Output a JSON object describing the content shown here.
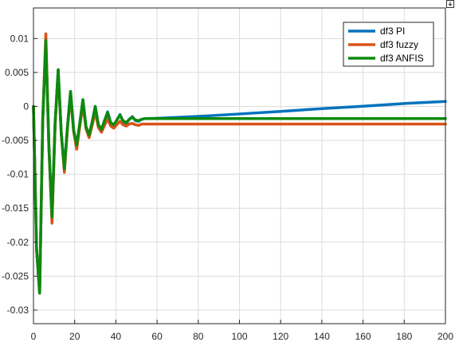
{
  "chart_data": {
    "type": "line",
    "title": "",
    "xlabel": "",
    "ylabel": "",
    "xlim": [
      0,
      200
    ],
    "ylim": [
      -0.032,
      0.0145
    ],
    "xticks": [
      0,
      20,
      40,
      60,
      80,
      100,
      120,
      140,
      160,
      180,
      200
    ],
    "xtick_labels": [
      "0",
      "20",
      "40",
      "60",
      "80",
      "100",
      "120",
      "140",
      "160",
      "180",
      "200"
    ],
    "yticks": [
      0.01,
      0.005,
      0,
      -0.005,
      -0.01,
      -0.015,
      -0.02,
      -0.025,
      -0.03
    ],
    "ytick_labels": [
      "0.01",
      "0.005",
      "0",
      "-0.005",
      "-0.01",
      "-0.015",
      "-0.02",
      "-0.025",
      "-0.03"
    ],
    "grid": true,
    "legend_position": "top-right",
    "series": [
      {
        "name": "df3 PI",
        "color": "#0072BD",
        "x": [
          0,
          1.5,
          3,
          4.5,
          6,
          7.5,
          9,
          10.5,
          12,
          13.5,
          15,
          16.5,
          18,
          19.5,
          21,
          22.5,
          24,
          25.5,
          27,
          28.5,
          30,
          31.5,
          33,
          34.5,
          36,
          37.5,
          39,
          40.5,
          42,
          43.5,
          45,
          46.5,
          48,
          49.5,
          51,
          52.5,
          54,
          60,
          80,
          100,
          120,
          140,
          160,
          180,
          200
        ],
        "y": [
          0,
          -0.021,
          -0.0275,
          -0.002,
          0.0095,
          -0.006,
          -0.0163,
          -0.0025,
          0.0054,
          -0.004,
          -0.0093,
          -0.003,
          0.0022,
          -0.0035,
          -0.0058,
          -0.0025,
          0.001,
          -0.003,
          -0.0042,
          -0.0023,
          0.0,
          -0.0027,
          -0.0034,
          -0.0021,
          -0.0008,
          -0.0024,
          -0.0028,
          -0.002,
          -0.0012,
          -0.0022,
          -0.0025,
          -0.0019,
          -0.0015,
          -0.0021,
          -0.0022,
          -0.0019,
          -0.0018,
          -0.00175,
          -0.00147,
          -0.00111,
          -0.00073,
          -0.00033,
          3e-05,
          0.00043,
          0.00073
        ]
      },
      {
        "name": "df3 fuzzy",
        "color": "#D95319",
        "x": [
          0,
          1.5,
          3,
          4.5,
          6,
          7.5,
          9,
          10.5,
          12,
          13.5,
          15,
          16.5,
          18,
          19.5,
          21,
          22.5,
          24,
          25.5,
          27,
          28.5,
          30,
          31.5,
          33,
          34.5,
          36,
          37.5,
          39,
          40.5,
          42,
          43.5,
          45,
          46.5,
          48,
          49.5,
          51,
          52.5,
          54,
          60,
          80,
          100,
          120,
          140,
          160,
          180,
          200
        ],
        "y": [
          0,
          -0.021,
          -0.0275,
          -0.002,
          0.0107,
          -0.006,
          -0.0172,
          -0.0028,
          0.0051,
          -0.004,
          -0.0097,
          -0.0033,
          0.0016,
          -0.0037,
          -0.0063,
          -0.0029,
          0.0003,
          -0.0033,
          -0.0046,
          -0.0028,
          -0.0008,
          -0.0031,
          -0.0038,
          -0.0028,
          -0.0018,
          -0.0029,
          -0.0032,
          -0.0027,
          -0.0022,
          -0.0027,
          -0.0029,
          -0.0026,
          -0.0025,
          -0.0027,
          -0.0028,
          -0.0026,
          -0.0026,
          -0.0026,
          -0.0026,
          -0.0026,
          -0.0026,
          -0.0026,
          -0.0026,
          -0.0026,
          -0.0026
        ]
      },
      {
        "name": "df3 ANFIS",
        "color": "#0D8A0D",
        "x": [
          0,
          1.5,
          3,
          4.5,
          6,
          7.5,
          9,
          10.5,
          12,
          13.5,
          15,
          16.5,
          18,
          19.5,
          21,
          22.5,
          24,
          25.5,
          27,
          28.5,
          30,
          31.5,
          33,
          34.5,
          36,
          37.5,
          39,
          40.5,
          42,
          43.5,
          45,
          46.5,
          48,
          49.5,
          51,
          52.5,
          54,
          60,
          80,
          100,
          120,
          140,
          160,
          180,
          200
        ],
        "y": [
          0,
          -0.021,
          -0.0275,
          -0.002,
          0.0097,
          -0.006,
          -0.0163,
          -0.0025,
          0.0054,
          -0.004,
          -0.0092,
          -0.003,
          0.0022,
          -0.0035,
          -0.0057,
          -0.0025,
          0.001,
          -0.003,
          -0.0042,
          -0.0023,
          0.0,
          -0.0027,
          -0.0034,
          -0.0021,
          -0.0009,
          -0.0024,
          -0.0027,
          -0.002,
          -0.0013,
          -0.0021,
          -0.0024,
          -0.0019,
          -0.0016,
          -0.002,
          -0.0021,
          -0.0019,
          -0.0018,
          -0.0018,
          -0.0018,
          -0.0018,
          -0.0018,
          -0.0018,
          -0.0018,
          -0.0018,
          -0.0018
        ]
      }
    ]
  }
}
